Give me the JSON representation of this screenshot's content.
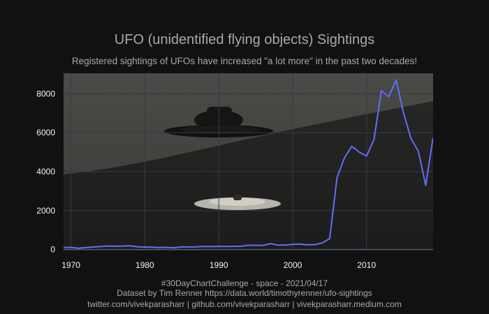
{
  "chart_data": {
    "type": "line",
    "title": "UFO (unidentified flying objects) Sightings",
    "subtitle": "Registered sightings of UFOs have increased \"a lot more\" in the past two decades!",
    "xlabel": "",
    "ylabel": "",
    "xlim": [
      1969,
      2019
    ],
    "ylim": [
      -50,
      9050
    ],
    "x_ticks": [
      1970,
      1980,
      1990,
      2000,
      2010
    ],
    "y_ticks": [
      0,
      2000,
      4000,
      6000,
      8000
    ],
    "grid": true,
    "legend": "none",
    "line_color": "#636efa",
    "background_description": "UFO photograph",
    "series": [
      {
        "x": [
          1969,
          1970,
          1971,
          1972,
          1973,
          1974,
          1975,
          1976,
          1977,
          1978,
          1979,
          1980,
          1981,
          1982,
          1983,
          1984,
          1985,
          1986,
          1987,
          1988,
          1989,
          1990,
          1991,
          1992,
          1993,
          1994,
          1995,
          1996,
          1997,
          1998,
          1999,
          2000,
          2001,
          2002,
          2003,
          2004,
          2005,
          2006,
          2007,
          2008,
          2009,
          2010,
          2011,
          2012,
          2013,
          2014,
          2015,
          2016,
          2017,
          2018,
          2019
        ],
        "y": [
          100,
          110,
          70,
          100,
          130,
          150,
          180,
          170,
          180,
          190,
          140,
          130,
          120,
          100,
          110,
          90,
          140,
          130,
          140,
          160,
          150,
          160,
          160,
          160,
          170,
          220,
          220,
          210,
          300,
          230,
          230,
          260,
          280,
          240,
          250,
          340,
          560,
          3700,
          4700,
          5300,
          5000,
          4800,
          5650,
          8150,
          7850,
          8700,
          7000,
          5700,
          5050,
          3300,
          5750
        ]
      }
    ]
  },
  "footer": {
    "line1": "#30DayChartChallenge - space - 2021/04/17",
    "line2": "Dataset by Tim Renner https://data.world/timothyrenner/ufo-sightings",
    "line3": "twitter.com/vivekparasharr | github.com/vivekparasharr | vivekparasharr.medium.com"
  }
}
